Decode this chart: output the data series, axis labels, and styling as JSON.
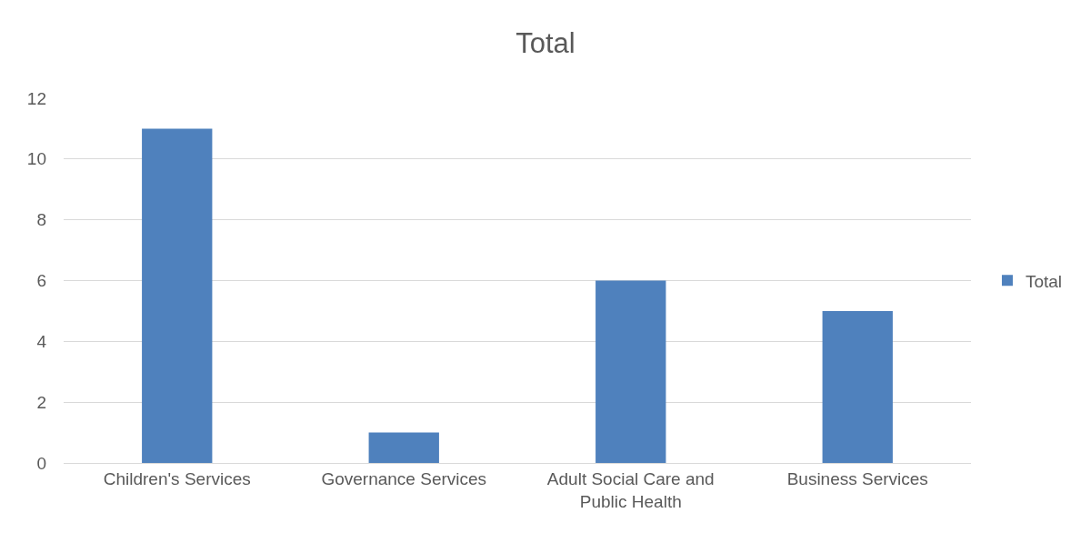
{
  "chart_data": {
    "type": "bar",
    "title": "Total",
    "categories": [
      "Children's Services",
      "Governance Services",
      "Adult Social Care and Public Health",
      "Business Services"
    ],
    "series": [
      {
        "name": "Total",
        "color": "#4f81bd",
        "values": [
          11,
          1,
          6,
          5
        ]
      }
    ],
    "ylim": [
      0,
      12
    ],
    "yticks": [
      0,
      2,
      4,
      6,
      8,
      10,
      12
    ],
    "grid": "y",
    "legend": "right"
  }
}
